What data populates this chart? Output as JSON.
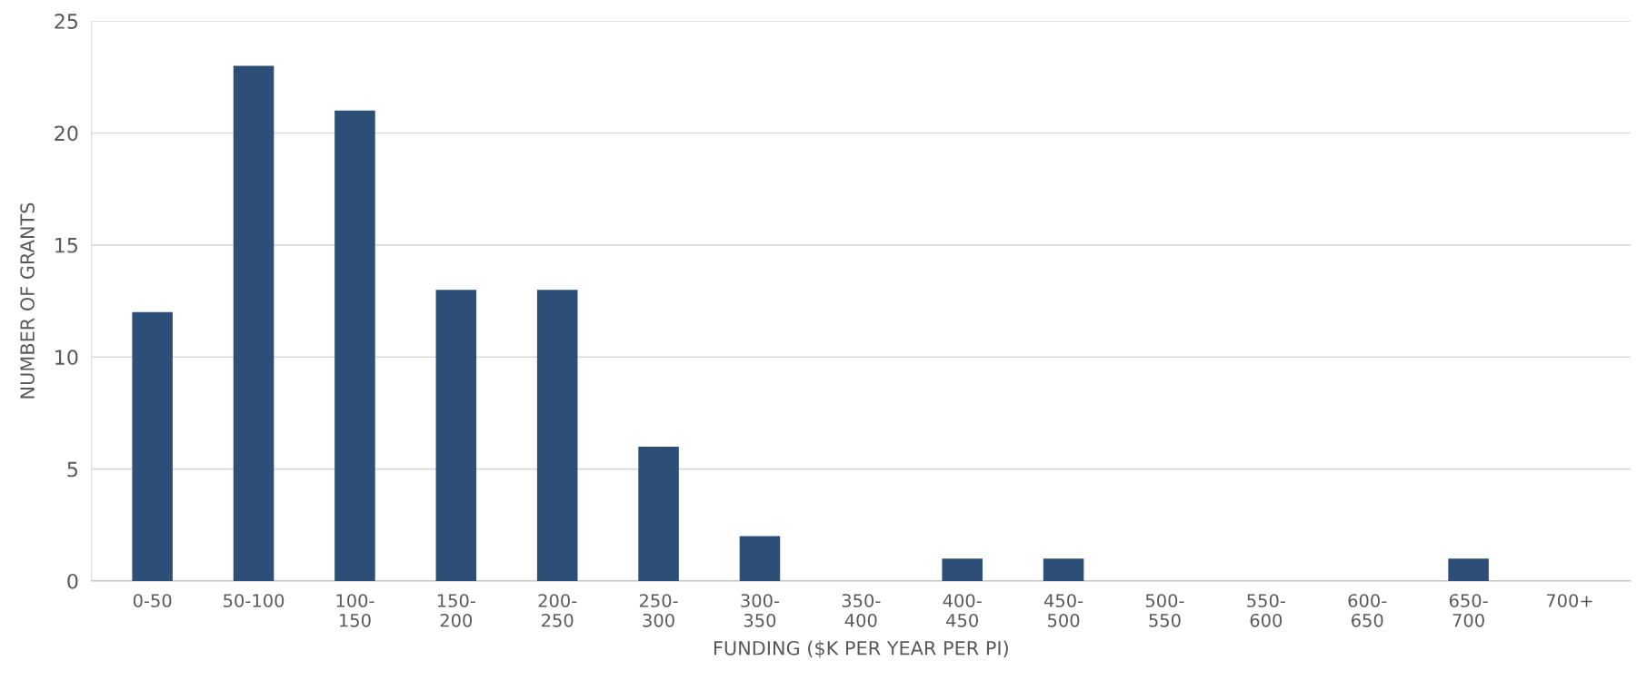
{
  "chart_data": {
    "type": "bar",
    "xlabel": "FUNDING ($K PER YEAR PER PI)",
    "ylabel": "NUMBER OF GRANTS",
    "categories": [
      "0-50",
      "50-100",
      "100-\n150",
      "150-\n200",
      "200-\n250",
      "250-\n300",
      "300-\n350",
      "350-\n400",
      "400-\n450",
      "450-\n500",
      "500-\n550",
      "550-\n600",
      "600-\n650",
      "650-\n700",
      "700+"
    ],
    "values": [
      12,
      23,
      21,
      13,
      13,
      6,
      2,
      0,
      1,
      1,
      0,
      0,
      0,
      1,
      0
    ],
    "color": "#2d4f77",
    "ylim": [
      0,
      25
    ],
    "yticks": [
      0,
      5,
      10,
      15,
      20,
      25
    ],
    "grid": "y",
    "legend": false
  }
}
